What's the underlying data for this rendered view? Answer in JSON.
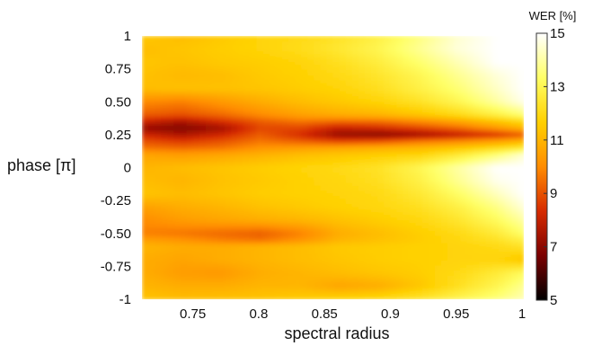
{
  "chart_data": {
    "type": "heatmap",
    "title": "",
    "xlabel": "spectral radius",
    "ylabel": "phase [π]",
    "xlim": [
      0.71,
      1.0
    ],
    "ylim": [
      -1,
      1
    ],
    "x_ticks": [
      "0.75",
      "0.8",
      "0.85",
      "0.9",
      "0.95",
      "1"
    ],
    "x_tick_values": [
      0.75,
      0.8,
      0.85,
      0.9,
      0.95,
      1.0
    ],
    "y_ticks": [
      "1",
      "0.75",
      "0.50",
      "0.25",
      "0",
      "-0.25",
      "-0.50",
      "-0.75",
      "-1"
    ],
    "y_tick_values": [
      1,
      0.75,
      0.5,
      0.25,
      0,
      -0.25,
      -0.5,
      -0.75,
      -1
    ],
    "colorbar": {
      "title": "WER [%]",
      "ticks": [
        "15",
        "13",
        "11",
        "9",
        "7",
        "5"
      ],
      "tick_values": [
        15,
        13,
        11,
        9,
        7,
        5
      ],
      "range": [
        5,
        15
      ],
      "colormap": [
        "#000000",
        "#7a0000",
        "#d62a00",
        "#ff8c00",
        "#ffd000",
        "#ffff66",
        "#ffffff"
      ]
    },
    "x": [
      0.71,
      0.74,
      0.77,
      0.8,
      0.83,
      0.86,
      0.89,
      0.92,
      0.95,
      0.98,
      1.0
    ],
    "y": [
      1,
      0.9,
      0.8,
      0.7,
      0.6,
      0.5,
      0.4,
      0.35,
      0.3,
      0.25,
      0.2,
      0.15,
      0.1,
      0,
      -0.1,
      -0.2,
      -0.3,
      -0.4,
      -0.5,
      -0.55,
      -0.6,
      -0.7,
      -0.8,
      -0.9,
      -1
    ],
    "z": [
      [
        11.5,
        11.2,
        11.5,
        11.8,
        12,
        12.3,
        12.8,
        13.6,
        14.5,
        15,
        15
      ],
      [
        11.2,
        11.4,
        11.6,
        11.8,
        12.1,
        12.5,
        13,
        13.8,
        14.6,
        15,
        15
      ],
      [
        11.4,
        11.3,
        11.5,
        11.6,
        11.8,
        12.2,
        12.7,
        13.4,
        14.2,
        15,
        15
      ],
      [
        11.3,
        11.1,
        11.2,
        11.5,
        11.7,
        12,
        12.4,
        13,
        13.8,
        14.6,
        15
      ],
      [
        11.2,
        11.3,
        11.3,
        11.4,
        11.6,
        11.8,
        12.2,
        12.8,
        13.5,
        14.4,
        15
      ],
      [
        10,
        9.8,
        10.3,
        10.8,
        11.2,
        11.5,
        11.8,
        12.3,
        13,
        14,
        14.8
      ],
      [
        9.2,
        9,
        9.4,
        10,
        10.5,
        10.8,
        11,
        11.4,
        12,
        12.8,
        13.5
      ],
      [
        8.2,
        7.6,
        8.4,
        9.2,
        9.6,
        9.4,
        9.5,
        10,
        10.6,
        11.4,
        12
      ],
      [
        7.2,
        6.8,
        7.4,
        8.8,
        8.8,
        8,
        8.3,
        8.8,
        9.4,
        10.3,
        11
      ],
      [
        8.2,
        7.6,
        8.2,
        9.2,
        8.4,
        7.2,
        7,
        7.4,
        8,
        8.6,
        9.2
      ],
      [
        9,
        8.6,
        9,
        9.6,
        9.2,
        8.8,
        9,
        9.6,
        10,
        10.5,
        11
      ],
      [
        9.6,
        9.4,
        9.6,
        10.2,
        10.4,
        10.6,
        10.8,
        11,
        11.4,
        12,
        12.5
      ],
      [
        10.6,
        10.4,
        10.6,
        10.9,
        11.2,
        11.4,
        11.6,
        11.8,
        12.5,
        13.5,
        14.5
      ],
      [
        11,
        11.2,
        11.4,
        11.6,
        11.8,
        12,
        12.3,
        13,
        14,
        15,
        15
      ],
      [
        11.2,
        11,
        11.3,
        11.5,
        11.7,
        11.9,
        12.2,
        12.8,
        13.8,
        14.8,
        15
      ],
      [
        11.4,
        11.2,
        11.4,
        11.6,
        11.7,
        11.8,
        12,
        12.5,
        13.3,
        14.3,
        15
      ],
      [
        10.5,
        10.8,
        11,
        11.3,
        11.5,
        11.7,
        11.9,
        12.2,
        12.8,
        13.7,
        14.6
      ],
      [
        10,
        10.4,
        10.6,
        10.8,
        11,
        11.3,
        11.6,
        11.9,
        12.4,
        13.2,
        14
      ],
      [
        9.8,
        9.6,
        9.4,
        9.2,
        9.8,
        10.8,
        11.2,
        11.6,
        12,
        12.6,
        13.4
      ],
      [
        10.5,
        10.2,
        9.8,
        9.6,
        10.2,
        11,
        11.3,
        11.6,
        11.9,
        12.3,
        12.8
      ],
      [
        11,
        10.8,
        10.8,
        11,
        11.2,
        11.5,
        11.6,
        11.7,
        11.8,
        12,
        12.3
      ],
      [
        10.8,
        10.6,
        10.8,
        11,
        11.2,
        11.4,
        11.6,
        11.7,
        11.8,
        11.8,
        11.4
      ],
      [
        10.8,
        10.4,
        10.3,
        10.8,
        11,
        11.2,
        11.4,
        11.6,
        12,
        12.6,
        13.2
      ],
      [
        11,
        10.8,
        10.8,
        11,
        11,
        10.6,
        10.8,
        11.4,
        12.2,
        13,
        13.8
      ],
      [
        11.4,
        11.2,
        11.3,
        11.4,
        11.6,
        11.8,
        12,
        12.4,
        13,
        13.6,
        14.2
      ]
    ]
  }
}
